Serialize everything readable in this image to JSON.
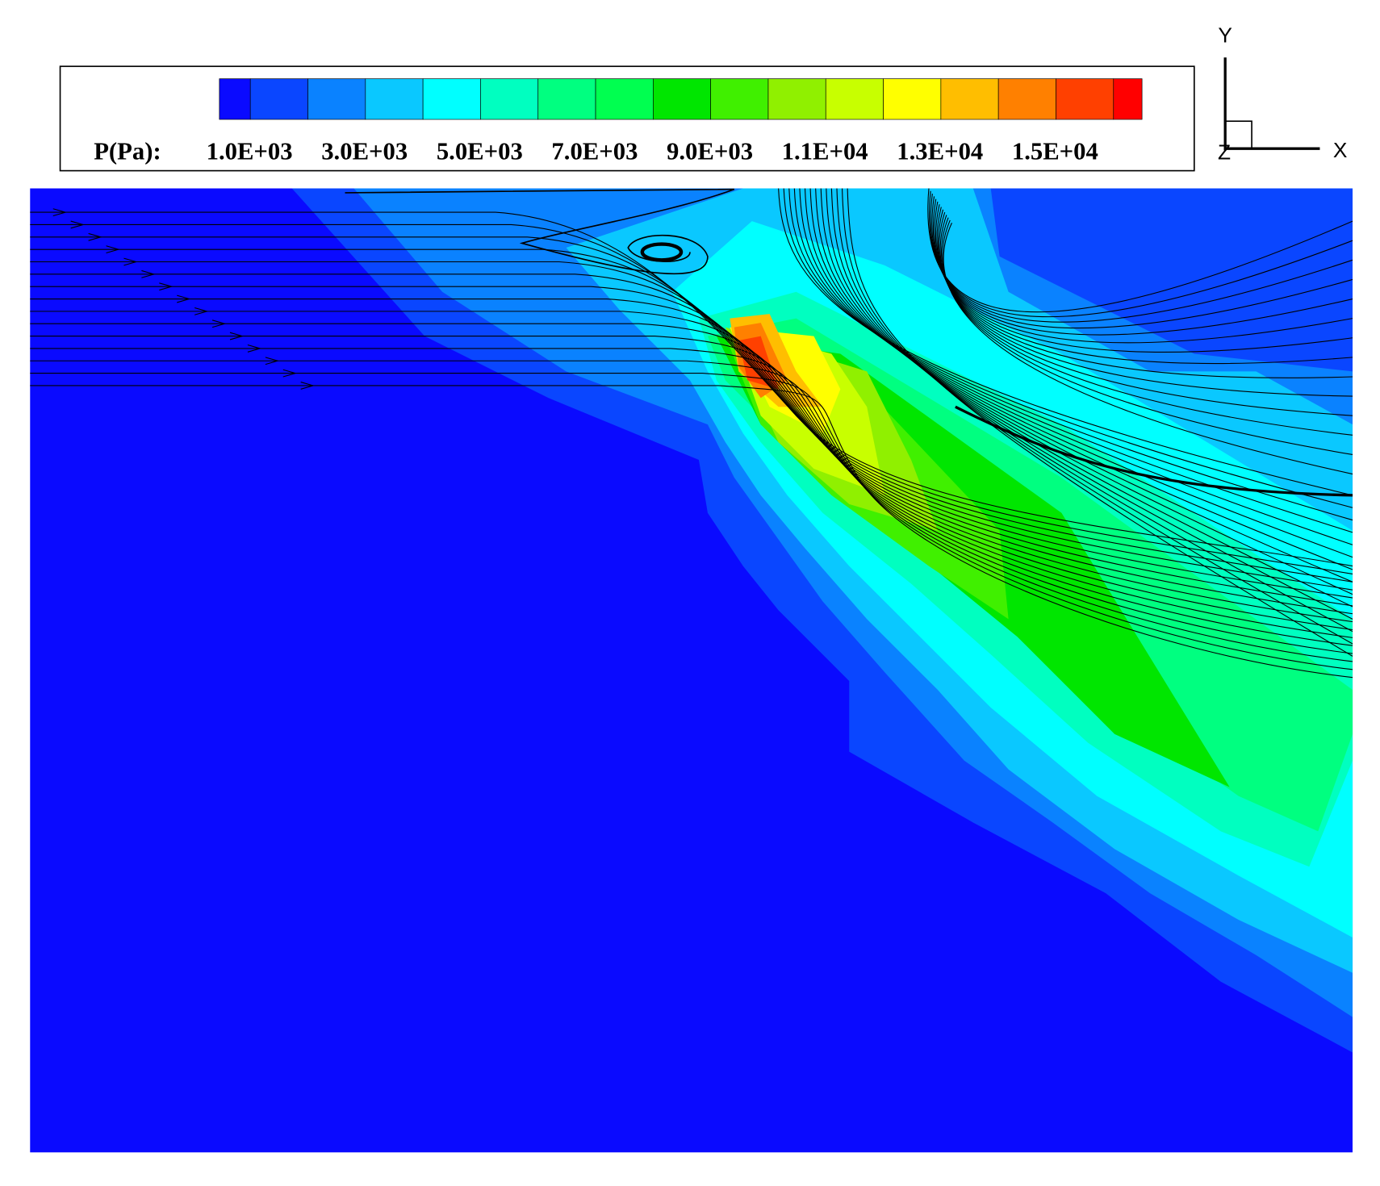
{
  "legend": {
    "title": "P(Pa):",
    "labels": [
      "1.0E+03",
      "3.0E+03",
      "5.0E+03",
      "7.0E+03",
      "9.0E+03",
      "1.1E+04",
      "1.3E+04",
      "1.5E+04"
    ],
    "colors": [
      "#0a0aff",
      "#0a46ff",
      "#0a82ff",
      "#0ac8ff",
      "#00ffff",
      "#00ffc0",
      "#00ff80",
      "#00ff50",
      "#00e600",
      "#40f000",
      "#90f000",
      "#c8ff00",
      "#ffff00",
      "#ffbe00",
      "#ff8000",
      "#ff4000",
      "#ff0000"
    ]
  },
  "axes": {
    "y": "Y",
    "x": "X",
    "z": "Z"
  }
}
